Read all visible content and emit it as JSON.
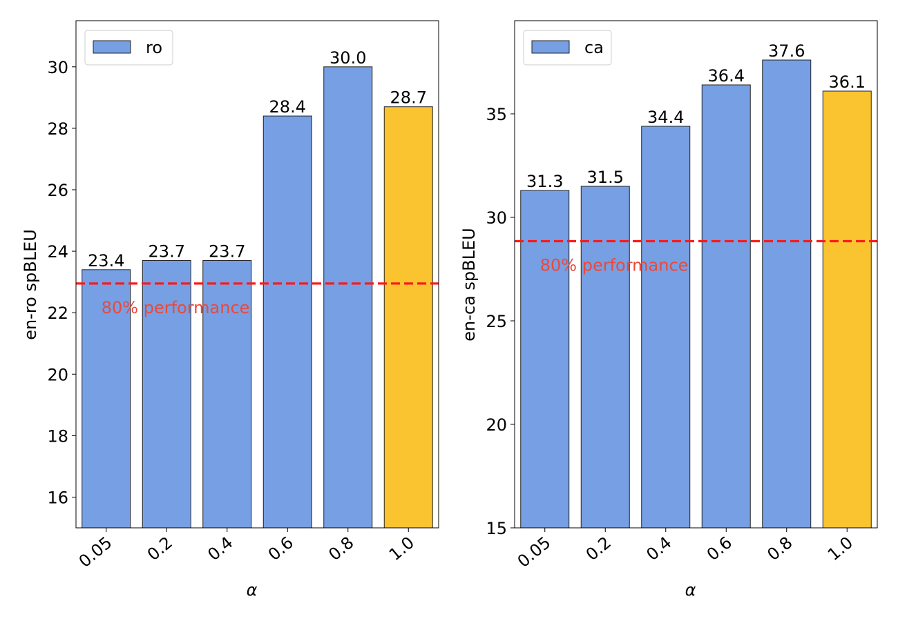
{
  "colors": {
    "bar": "#779fe4",
    "highlight": "#fac431",
    "reference_line": "#ff1a1a",
    "reference_text": "#e84a3c"
  },
  "chart_data": [
    {
      "type": "bar",
      "categories": [
        "0.05",
        "0.2",
        "0.4",
        "0.6",
        "0.8",
        "1.0"
      ],
      "values": [
        23.4,
        23.7,
        23.7,
        28.4,
        30.0,
        28.7
      ],
      "value_labels": [
        "23.4",
        "23.7",
        "23.7",
        "28.4",
        "30.0",
        "28.7"
      ],
      "highlight_index": 5,
      "xlabel": "α",
      "ylabel": "en-ro spBLEU",
      "ylim": [
        15,
        31.5
      ],
      "yticks": [
        16,
        18,
        20,
        22,
        24,
        26,
        28,
        30
      ],
      "legend": "ro",
      "legend_position": "top-left",
      "reference_line": {
        "value": 22.95,
        "label": "80% performance"
      }
    },
    {
      "type": "bar",
      "categories": [
        "0.05",
        "0.2",
        "0.4",
        "0.6",
        "0.8",
        "1.0"
      ],
      "values": [
        31.3,
        31.5,
        34.4,
        36.4,
        37.6,
        36.1
      ],
      "value_labels": [
        "31.3",
        "31.5",
        "34.4",
        "36.4",
        "37.6",
        "36.1"
      ],
      "highlight_index": 5,
      "xlabel": "α",
      "ylabel": "en-ca spBLEU",
      "ylim": [
        15,
        39.5
      ],
      "yticks": [
        15,
        20,
        25,
        30,
        35
      ],
      "legend": "ca",
      "legend_position": "top-left",
      "reference_line": {
        "value": 28.85,
        "label": "80% performance"
      }
    }
  ]
}
